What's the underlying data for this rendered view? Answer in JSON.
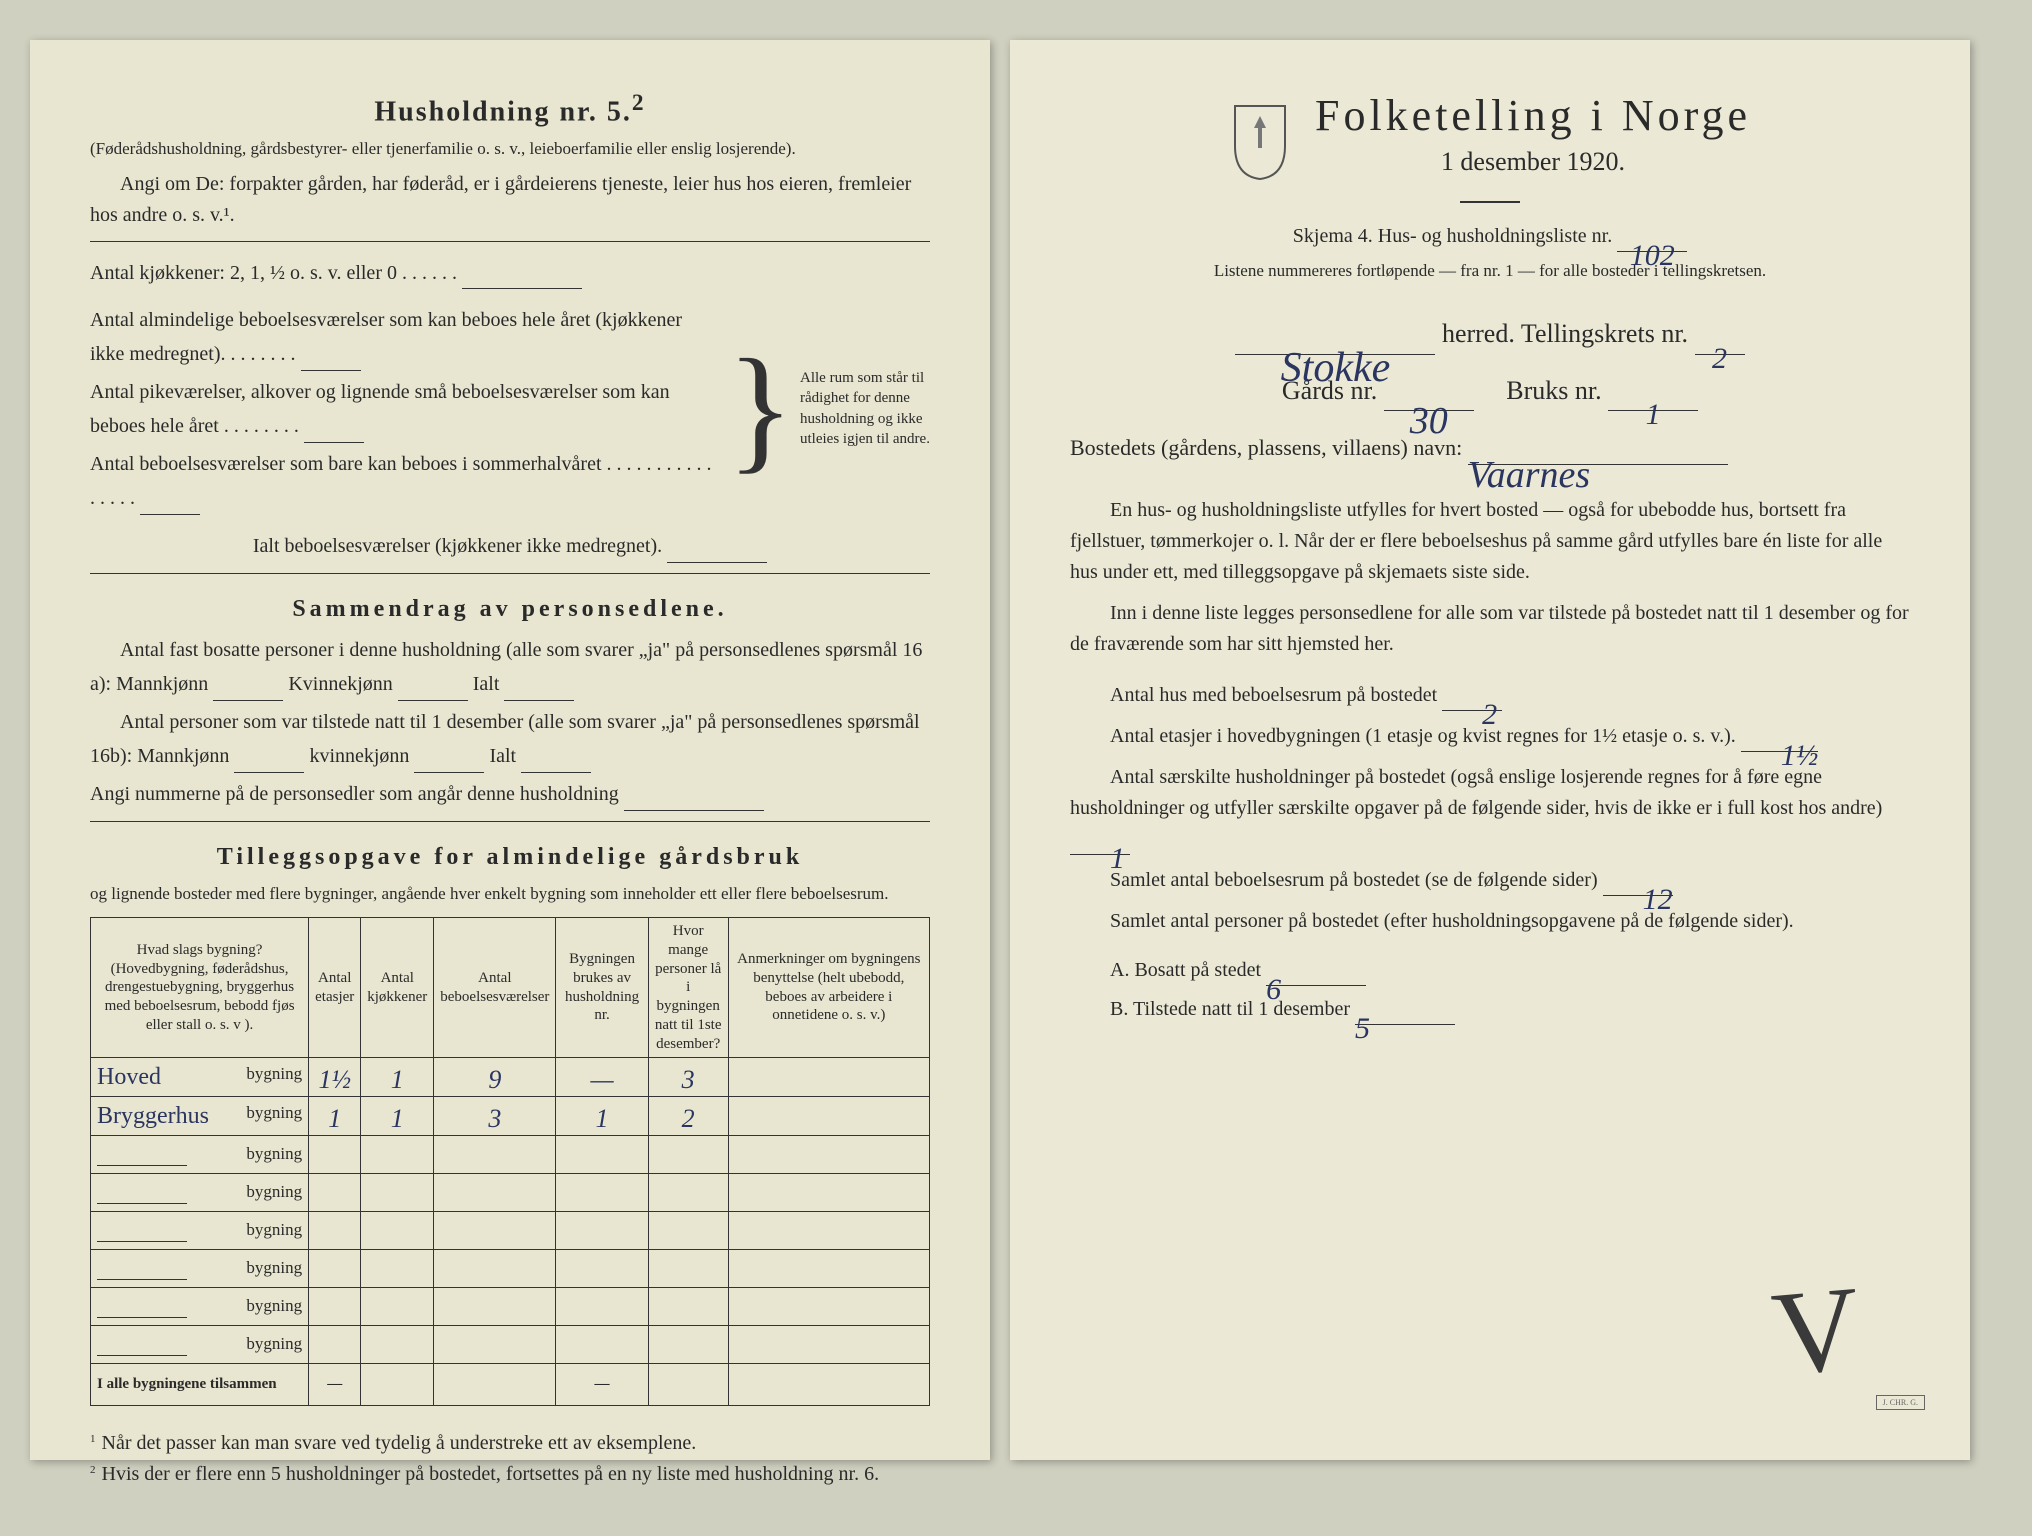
{
  "left": {
    "title": "Husholdning nr. 5.",
    "title_sup": "2",
    "sub1": "(Føderådshusholdning, gårdsbestyrer- eller tjenerfamilie o. s. v., leieboerfamilie eller enslig losjerende).",
    "sub2": "Angi om De: forpakter gården, har føderåd, er i gårdeierens tjeneste, leier hus hos eieren, fremleier hos andre o. s. v.¹.",
    "kitchen_line": "Antal kjøkkener: 2, 1, ½ o. s. v. eller 0 . . . . . .",
    "b1": "Antal almindelige beboelsesværelser som kan beboes hele året (kjøkkener ikke medregnet). . . . . . . .",
    "b2": "Antal pikeværelser, alkover og lignende små beboelsesværelser som kan beboes hele året . . . . . . . .",
    "b3": "Antal beboelsesværelser som bare kan beboes i sommerhalvåret . . . . . . . . . . . . . . . .",
    "brace_text": "Alle rum som står til rådighet for denne husholdning og ikke utleies igjen til andre.",
    "ialt": "Ialt beboelsesværelser (kjøkkener ikke medregnet).",
    "section_sammen": "Sammendrag av personsedlene.",
    "s1a": "Antal fast bosatte personer i denne husholdning (alle som svarer „ja\" på personsedlenes spørsmål 16 a): Mannkjønn",
    "s1b": "Kvinnekjønn",
    "s1c": "Ialt",
    "s2a": "Antal personer som var tilstede natt til 1 desember (alle som svarer „ja\" på personsedlenes spørsmål 16b): Mannkjønn",
    "s2b": "kvinnekjønn",
    "s2c": "Ialt",
    "s3": "Angi nummerne på de personsedler som angår denne husholdning",
    "section_tillegg": "Tilleggsopgave for almindelige gårdsbruk",
    "tillegg_sub": "og lignende bosteder med flere bygninger, angående hver enkelt bygning som inneholder ett eller flere beboelsesrum.",
    "table": {
      "headers": [
        "Hvad slags bygning?\n(Hovedbygning, føderådshus, drengestuebygning, bryggerhus med beboelsesrum, bebodd fjøs eller stall o. s. v ).",
        "Antal\netasjer",
        "Antal\nkjøkkener",
        "Antal\nbeboelsesværelser",
        "Bygningen\nbrukes av\nhusholdning nr.",
        "Hvor mange\npersoner lå\ni bygningen\nnatt til 1ste\ndesember?",
        "Anmerkninger om bygningens benyttelse (helt ubebodd, beboes av arbeidere i onnetidene o. s. v.)"
      ],
      "rows": [
        {
          "pre": "Hoved",
          "cells": [
            "1½",
            "1",
            "9",
            "—",
            "3",
            ""
          ]
        },
        {
          "pre": "Bryggerhus",
          "cells": [
            "1",
            "1",
            "3",
            "1",
            "2",
            ""
          ]
        },
        {
          "pre": "",
          "cells": [
            "",
            "",
            "",
            "",
            "",
            ""
          ]
        },
        {
          "pre": "",
          "cells": [
            "",
            "",
            "",
            "",
            "",
            ""
          ]
        },
        {
          "pre": "",
          "cells": [
            "",
            "",
            "",
            "",
            "",
            ""
          ]
        },
        {
          "pre": "",
          "cells": [
            "",
            "",
            "",
            "",
            "",
            ""
          ]
        },
        {
          "pre": "",
          "cells": [
            "",
            "",
            "",
            "",
            "",
            ""
          ]
        },
        {
          "pre": "",
          "cells": [
            "",
            "",
            "",
            "",
            "",
            ""
          ]
        }
      ],
      "footer_label": "I alle bygningene tilsammen",
      "footer_cells": [
        "—",
        "",
        "",
        "—",
        "",
        ""
      ]
    },
    "fn1": "Når det passer kan man svare ved tydelig å understreke ett av eksemplene.",
    "fn2": "Hvis der er flere enn 5 husholdninger på bostedet, fortsettes på en ny liste med husholdning nr. 6."
  },
  "right": {
    "title": "Folketelling i Norge",
    "date": "1 desember 1920.",
    "skjema_a": "Skjema 4.  Hus- og husholdningsliste nr.",
    "skjema_val": "102",
    "listene": "Listene nummereres fortløpende — fra nr. 1 — for alle bosteder i tellingskretsen.",
    "herred_val": "Stokke",
    "herred_lbl": "herred.   Tellingskrets nr.",
    "krets_val": "2",
    "gard_lbl": "Gårds nr.",
    "gard_val": "30",
    "bruk_lbl": "Bruks nr.",
    "bruk_val": "1",
    "bosted_lbl": "Bostedets (gårdens, plassens, villaens) navn:",
    "bosted_val": "Vaarnes",
    "para1": "En hus- og husholdningsliste utfylles for hvert bosted — også for ubebodde hus, bortsett fra fjellstuer, tømmerkojer o. l. Når der er flere beboelseshus på samme gård utfylles bare én liste for alle hus under ett, med tilleggsopgave på skjemaets siste side.",
    "para2": "Inn i denne liste legges personsedlene for alle som var tilstede på bostedet natt til 1 desember og for de fraværende som har sitt hjemsted her.",
    "q1a": "Antal hus med beboelsesrum på bostedet",
    "q1v": "2",
    "q2a": "Antal etasjer i hovedbygningen (1 etasje og kvist regnes for 1½ etasje o. s. v.).",
    "q2v": "1½",
    "q3a": "Antal særskilte husholdninger på bostedet (også enslige losjerende regnes for å føre egne husholdninger og utfyller særskilte opgaver på de følgende sider, hvis de ikke er i full kost hos andre)",
    "q3v": "1",
    "q4a": "Samlet antal beboelsesrum på bostedet (se de følgende sider)",
    "q4v": "12",
    "q5a": "Samlet antal personer på bostedet (efter husholdningsopgavene på de følgende sider).",
    "A_lbl": "A.  Bosatt på stedet",
    "A_val": "6",
    "B_lbl": "B.  Tilstede natt til 1 desember",
    "B_val": "5"
  },
  "colors": {
    "paper": "#e8e6d0",
    "ink": "#2a2a2a",
    "handwriting": "#2a3560"
  }
}
